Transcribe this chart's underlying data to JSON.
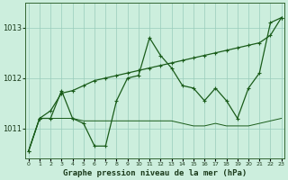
{
  "title": "Graphe pression niveau de la mer (hPa)",
  "hours": [
    0,
    1,
    2,
    3,
    4,
    5,
    6,
    7,
    8,
    9,
    10,
    11,
    12,
    13,
    14,
    15,
    16,
    17,
    18,
    19,
    20,
    21,
    22,
    23
  ],
  "line_trend": [
    1010.55,
    1011.2,
    1011.35,
    1011.7,
    1011.75,
    1011.85,
    1011.95,
    1012.0,
    1012.05,
    1012.1,
    1012.15,
    1012.2,
    1012.25,
    1012.3,
    1012.35,
    1012.4,
    1012.45,
    1012.5,
    1012.55,
    1012.6,
    1012.65,
    1012.7,
    1012.85,
    1013.2
  ],
  "line_zigzag": [
    1010.55,
    1011.2,
    1011.2,
    1011.75,
    1011.2,
    1011.1,
    1010.65,
    1010.65,
    1011.55,
    1012.0,
    1012.05,
    1012.8,
    1012.45,
    1012.2,
    1011.85,
    1011.8,
    1011.55,
    1011.8,
    1011.55,
    1011.2,
    1011.8,
    1012.1,
    1013.1,
    1013.2
  ],
  "line_flat": [
    1010.55,
    1011.2,
    1011.2,
    1011.2,
    1011.2,
    1011.15,
    1011.15,
    1011.15,
    1011.15,
    1011.15,
    1011.15,
    1011.15,
    1011.15,
    1011.15,
    1011.1,
    1011.05,
    1011.05,
    1011.1,
    1011.05,
    1011.05,
    1011.05,
    1011.1,
    1011.15,
    1011.2
  ],
  "background_color": "#cceedd",
  "grid_color": "#99ccbb",
  "line_color": "#1a5c1a",
  "ylim_min": 1010.4,
  "ylim_max": 1013.5,
  "yticks": [
    1011,
    1012,
    1013
  ]
}
